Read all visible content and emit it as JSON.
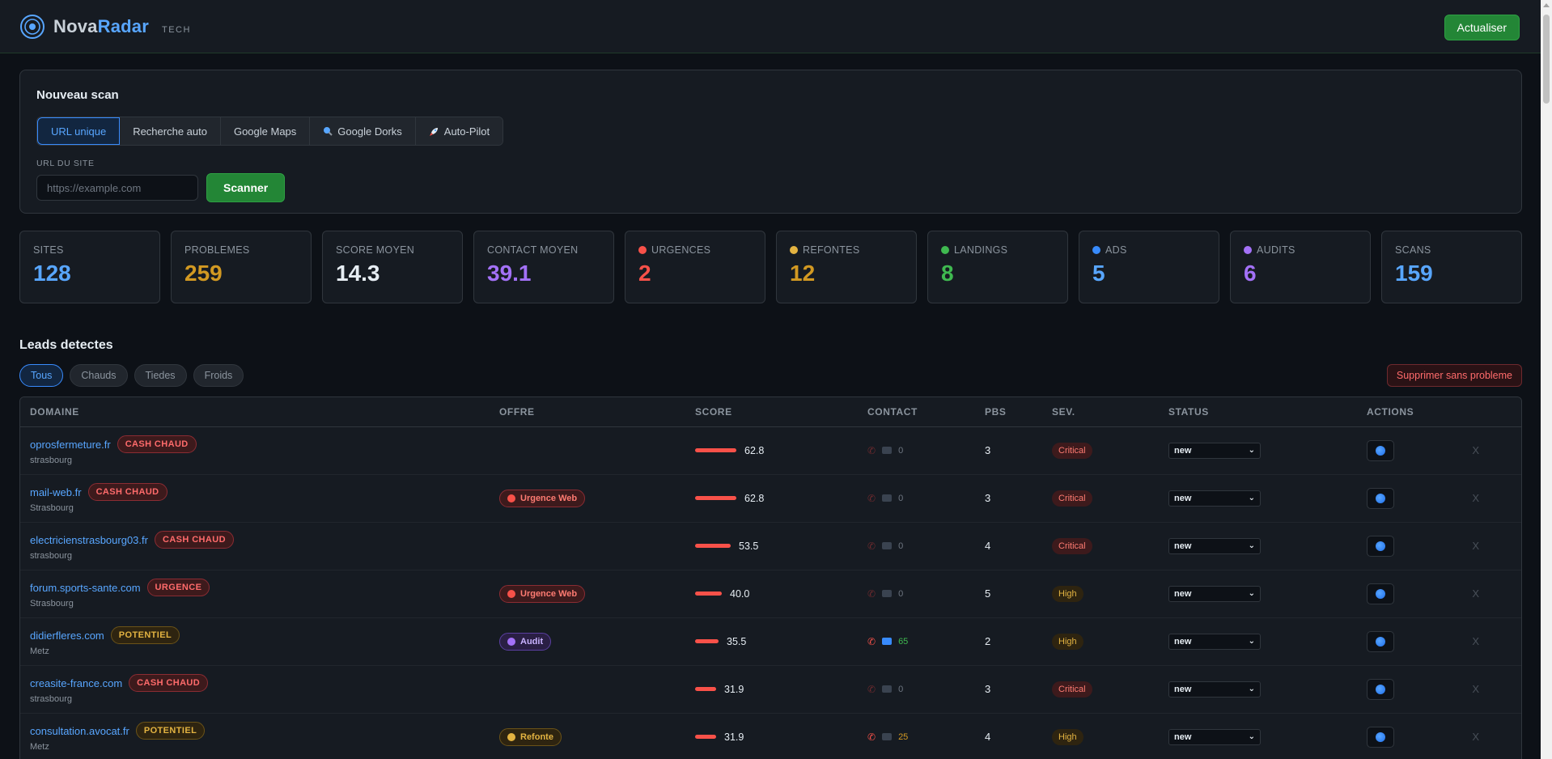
{
  "app": {
    "name_part1": "Nova",
    "name_part2": "Radar",
    "subtitle": "TECH",
    "refresh_label": "Actualiser"
  },
  "scan": {
    "title": "Nouveau scan",
    "tabs": [
      {
        "label": "URL unique",
        "icon": ""
      },
      {
        "label": "Recherche auto",
        "icon": ""
      },
      {
        "label": "Google Maps",
        "icon": ""
      },
      {
        "label": "Google Dorks",
        "icon": "magnifier-icon"
      },
      {
        "label": "Auto-Pilot",
        "icon": "rocket-icon"
      }
    ],
    "url_label": "URL DU SITE",
    "url_placeholder": "https://example.com",
    "scan_button": "Scanner"
  },
  "stats": [
    {
      "label": "SITES",
      "value": "128",
      "color": "#58a6ff",
      "dot": ""
    },
    {
      "label": "PROBLEMES",
      "value": "259",
      "color": "#d29922",
      "dot": ""
    },
    {
      "label": "SCORE MOYEN",
      "value": "14.3",
      "color": "#e6edf3",
      "dot": ""
    },
    {
      "label": "CONTACT MOYEN",
      "value": "39.1",
      "color": "#a371f7",
      "dot": ""
    },
    {
      "label": "URGENCES",
      "value": "2",
      "color": "#f85149",
      "dot": "#f85149"
    },
    {
      "label": "REFONTES",
      "value": "12",
      "color": "#d29922",
      "dot": "#e3b341"
    },
    {
      "label": "LANDINGS",
      "value": "8",
      "color": "#3fb950",
      "dot": "#3fb950"
    },
    {
      "label": "ADS",
      "value": "5",
      "color": "#58a6ff",
      "dot": "#388bfd"
    },
    {
      "label": "AUDITS",
      "value": "6",
      "color": "#a371f7",
      "dot": "#a371f7"
    },
    {
      "label": "SCANS",
      "value": "159",
      "color": "#58a6ff",
      "dot": ""
    }
  ],
  "leads": {
    "title": "Leads detectes",
    "filters": [
      "Tous",
      "Chauds",
      "Tiedes",
      "Froids"
    ],
    "delete_label": "Supprimer sans probleme",
    "columns": [
      "DOMAINE",
      "OFFRE",
      "SCORE",
      "CONTACT",
      "PBS",
      "SEV.",
      "STATUS",
      "ACTIONS"
    ],
    "rows": [
      {
        "domain": "oprosfermeture.fr",
        "tag": "CASH CHAUD",
        "tag_tone": "red",
        "city": "strasbourg",
        "offer": "",
        "offer_tone": "",
        "score": 62.8,
        "score_label": "62.8",
        "contact": "0",
        "contact_tone": "dim",
        "pbs": "3",
        "sev": "Critical",
        "status": "new"
      },
      {
        "domain": "mail-web.fr",
        "tag": "CASH CHAUD",
        "tag_tone": "red",
        "city": "Strasbourg",
        "offer": "Urgence Web",
        "offer_tone": "red",
        "score": 62.8,
        "score_label": "62.8",
        "contact": "0",
        "contact_tone": "dim",
        "pbs": "3",
        "sev": "Critical",
        "status": "new"
      },
      {
        "domain": "electricienstrasbourg03.fr",
        "tag": "CASH CHAUD",
        "tag_tone": "red",
        "city": "strasbourg",
        "offer": "",
        "offer_tone": "",
        "score": 53.5,
        "score_label": "53.5",
        "contact": "0",
        "contact_tone": "dim",
        "pbs": "4",
        "sev": "Critical",
        "status": "new"
      },
      {
        "domain": "forum.sports-sante.com",
        "tag": "URGENCE",
        "tag_tone": "red",
        "city": "Strasbourg",
        "offer": "Urgence Web",
        "offer_tone": "red",
        "score": 40.0,
        "score_label": "40.0",
        "contact": "0",
        "contact_tone": "dim",
        "pbs": "5",
        "sev": "High",
        "status": "new"
      },
      {
        "domain": "didierfleres.com",
        "tag": "POTENTIEL",
        "tag_tone": "amber",
        "city": "Metz",
        "offer": "Audit",
        "offer_tone": "purple",
        "score": 35.5,
        "score_label": "35.5",
        "contact": "65",
        "contact_tone": "green",
        "pbs": "2",
        "sev": "High",
        "status": "new"
      },
      {
        "domain": "creasite-france.com",
        "tag": "CASH CHAUD",
        "tag_tone": "red",
        "city": "strasbourg",
        "offer": "",
        "offer_tone": "",
        "score": 31.9,
        "score_label": "31.9",
        "contact": "0",
        "contact_tone": "dim",
        "pbs": "3",
        "sev": "Critical",
        "status": "new"
      },
      {
        "domain": "consultation.avocat.fr",
        "tag": "POTENTIEL",
        "tag_tone": "amber",
        "city": "Metz",
        "offer": "Refonte",
        "offer_tone": "amber",
        "score": 31.9,
        "score_label": "31.9",
        "contact": "25",
        "contact_tone": "amber",
        "pbs": "4",
        "sev": "High",
        "status": "new"
      }
    ],
    "row_close_label": "X"
  }
}
